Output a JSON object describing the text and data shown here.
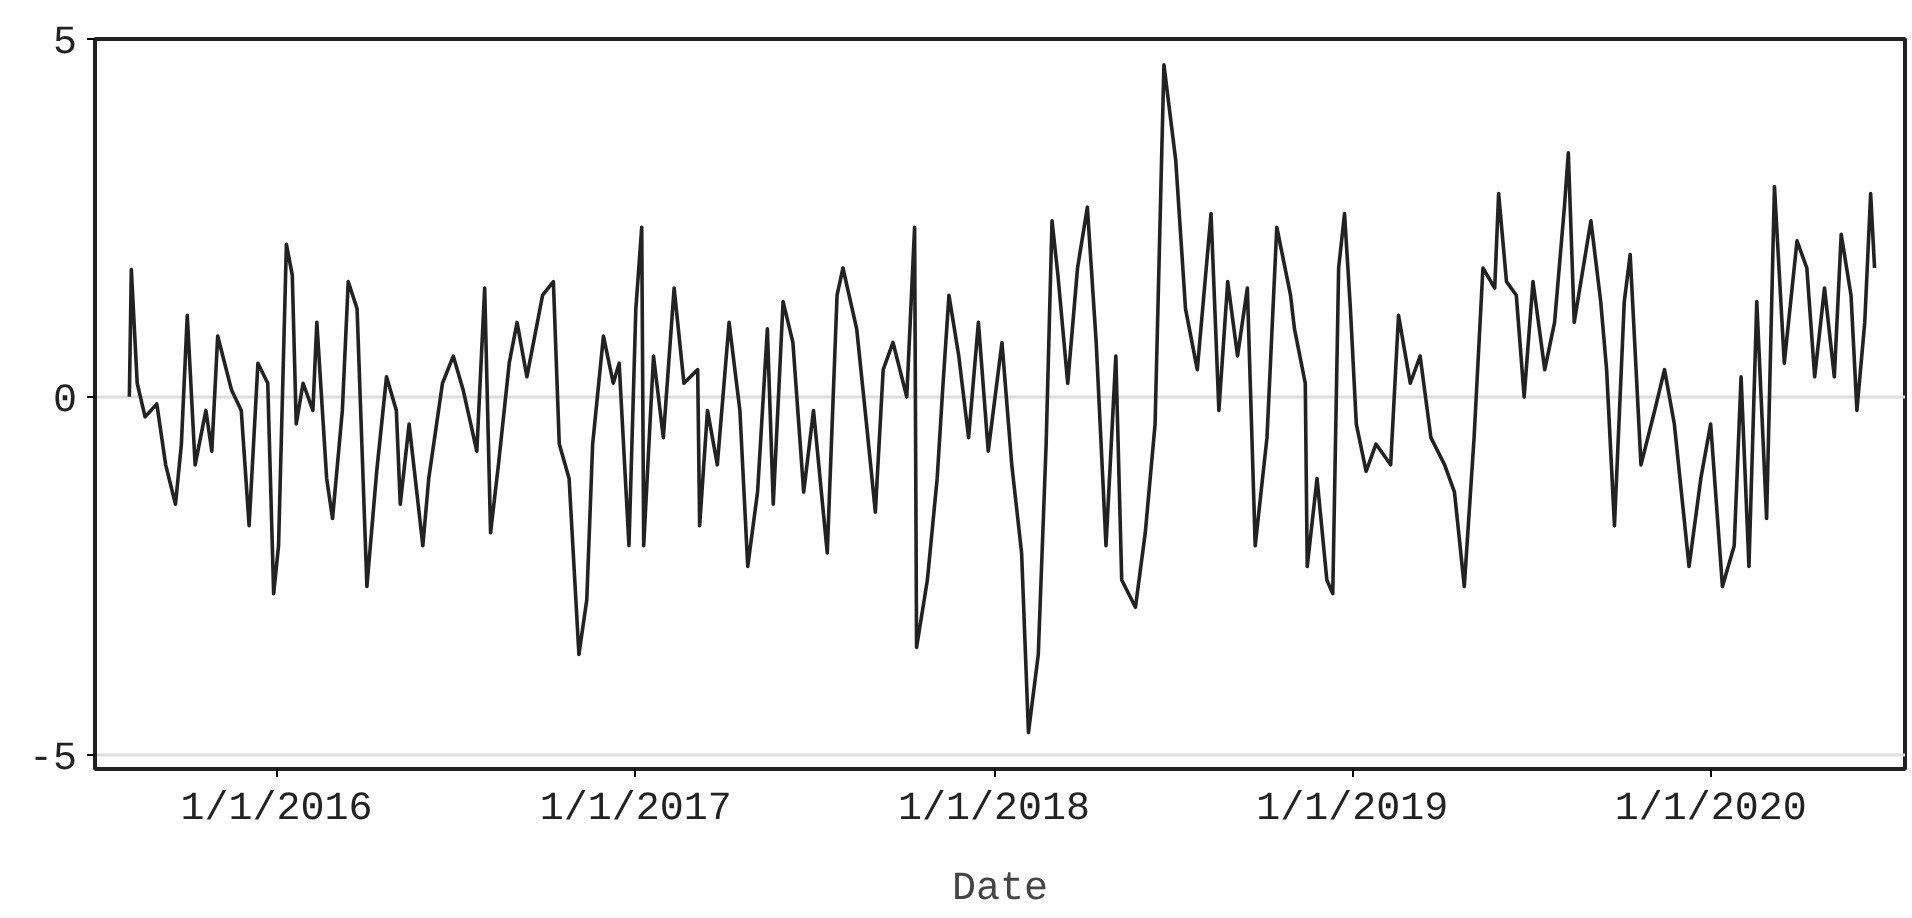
{
  "chart_data": {
    "type": "line",
    "xlabel": "Date",
    "xlim": [
      "2015-06-30",
      "2020-07-17"
    ],
    "ylim": [
      -5.2,
      5
    ],
    "xticks": [
      {
        "value": "2016-01-01",
        "label": "1/1/2016"
      },
      {
        "value": "2017-01-01",
        "label": "1/1/2017"
      },
      {
        "value": "2018-01-01",
        "label": "1/1/2018"
      },
      {
        "value": "2019-01-01",
        "label": "1/1/2019"
      },
      {
        "value": "2020-01-01",
        "label": "1/1/2020"
      }
    ],
    "yticks": [
      {
        "value": -5,
        "label": "-5"
      },
      0,
      5
    ],
    "grid": "y",
    "marker": "none",
    "line_style": "solid",
    "x": [
      "2015-08-04",
      "2015-08-06",
      "2015-08-12",
      "2015-08-20",
      "2015-09-01",
      "2015-09-10",
      "2015-09-20",
      "2015-09-26",
      "2015-10-02",
      "2015-10-10",
      "2015-10-21",
      "2015-10-27",
      "2015-11-02",
      "2015-11-16",
      "2015-11-26",
      "2015-12-04",
      "2015-12-13",
      "2015-12-23",
      "2015-12-29",
      "2016-01-03",
      "2016-01-11",
      "2016-01-17",
      "2016-01-21",
      "2016-01-28",
      "2016-02-07",
      "2016-02-11",
      "2016-02-21",
      "2016-02-27",
      "2016-03-08",
      "2016-03-14",
      "2016-03-23",
      "2016-04-02",
      "2016-04-12",
      "2016-04-22",
      "2016-05-02",
      "2016-05-06",
      "2016-05-15",
      "2016-05-29",
      "2016-06-04",
      "2016-06-18",
      "2016-06-29",
      "2016-07-09",
      "2016-07-23",
      "2016-07-31",
      "2016-08-06",
      "2016-08-14",
      "2016-08-25",
      "2016-09-02",
      "2016-09-12",
      "2016-09-28",
      "2016-10-09",
      "2016-10-15",
      "2016-10-25",
      "2016-11-04",
      "2016-11-12",
      "2016-11-18",
      "2016-11-29",
      "2016-12-09",
      "2016-12-15",
      "2016-12-25",
      "2017-01-01",
      "2017-01-07",
      "2017-01-09",
      "2017-01-19",
      "2017-01-29",
      "2017-02-09",
      "2017-02-19",
      "2017-03-05",
      "2017-03-07",
      "2017-03-15",
      "2017-03-25",
      "2017-04-06",
      "2017-04-17",
      "2017-04-25",
      "2017-05-05",
      "2017-05-15",
      "2017-05-21",
      "2017-05-31",
      "2017-06-10",
      "2017-06-21",
      "2017-07-01",
      "2017-07-15",
      "2017-07-25",
      "2017-07-31",
      "2017-08-14",
      "2017-08-24",
      "2017-09-02",
      "2017-09-10",
      "2017-09-20",
      "2017-10-04",
      "2017-10-12",
      "2017-10-14",
      "2017-10-25",
      "2017-11-04",
      "2017-11-10",
      "2017-11-16",
      "2017-11-26",
      "2017-12-06",
      "2017-12-16",
      "2017-12-26",
      "2018-01-09",
      "2018-01-19",
      "2018-01-29",
      "2018-02-05",
      "2018-02-15",
      "2018-02-23",
      "2018-03-01",
      "2018-03-07",
      "2018-03-17",
      "2018-03-27",
      "2018-04-06",
      "2018-04-15",
      "2018-04-25",
      "2018-05-05",
      "2018-05-11",
      "2018-05-25",
      "2018-06-04",
      "2018-06-14",
      "2018-06-23",
      "2018-07-05",
      "2018-07-15",
      "2018-07-27",
      "2018-08-10",
      "2018-08-18",
      "2018-08-27",
      "2018-09-06",
      "2018-09-16",
      "2018-09-24",
      "2018-10-06",
      "2018-10-16",
      "2018-10-30",
      "2018-11-03",
      "2018-11-14",
      "2018-11-16",
      "2018-11-26",
      "2018-12-06",
      "2018-12-12",
      "2018-12-18",
      "2018-12-24",
      "2018-12-30",
      "2019-01-05",
      "2019-01-15",
      "2019-01-25",
      "2019-02-09",
      "2019-02-17",
      "2019-03-01",
      "2019-03-11",
      "2019-03-22",
      "2019-04-05",
      "2019-04-15",
      "2019-04-25",
      "2019-05-05",
      "2019-05-14",
      "2019-05-26",
      "2019-05-30",
      "2019-06-07",
      "2019-06-17",
      "2019-06-25",
      "2019-07-04",
      "2019-07-16",
      "2019-07-26",
      "2019-08-05",
      "2019-08-09",
      "2019-08-15",
      "2019-09-01",
      "2019-09-11",
      "2019-09-17",
      "2019-09-25",
      "2019-10-05",
      "2019-10-11",
      "2019-10-22",
      "2019-11-05",
      "2019-11-15",
      "2019-11-25",
      "2019-12-10",
      "2019-12-22",
      "2020-01-01",
      "2020-01-13",
      "2020-01-25",
      "2020-02-01",
      "2020-02-09",
      "2020-02-17",
      "2020-02-27",
      "2020-03-06",
      "2020-03-16",
      "2020-03-29",
      "2020-04-08",
      "2020-04-16",
      "2020-04-26",
      "2020-05-06",
      "2020-05-13",
      "2020-05-23",
      "2020-05-29",
      "2020-06-06",
      "2020-06-12",
      "2020-06-16"
    ],
    "series": [
      {
        "color": "#222222",
        "values": [
          0,
          1.78,
          0.19,
          -0.28,
          -0.1,
          -0.95,
          -1.5,
          -0.66,
          1.14,
          -0.95,
          -0.19,
          -0.76,
          0.85,
          0.1,
          -0.19,
          -1.8,
          0.47,
          0.19,
          -2.75,
          -2.08,
          2.13,
          1.7,
          -0.38,
          0.19,
          -0.19,
          1.04,
          -1.14,
          -1.7,
          -0.19,
          1.61,
          1.23,
          -2.65,
          -1.04,
          0.28,
          -0.19,
          -1.5,
          -0.38,
          -2.08,
          -1.14,
          0.19,
          0.57,
          0.1,
          -0.76,
          1.52,
          -1.9,
          -0.95,
          0.47,
          1.04,
          0.28,
          1.42,
          1.61,
          -0.66,
          -1.14,
          -3.6,
          -2.84,
          -0.66,
          0.85,
          0.19,
          0.47,
          -2.08,
          1.23,
          2.37,
          -2.08,
          0.57,
          -0.57,
          1.52,
          0.19,
          0.38,
          -1.8,
          -0.19,
          -0.95,
          1.04,
          -0.19,
          -2.37,
          -1.33,
          0.95,
          -1.5,
          1.33,
          0.76,
          -1.33,
          -0.19,
          -2.18,
          1.42,
          1.8,
          0.95,
          -0.38,
          -1.61,
          0.38,
          0.76,
          0,
          2.37,
          -3.5,
          -2.56,
          -1.14,
          0.19,
          1.42,
          0.57,
          -0.57,
          1.04,
          -0.76,
          0.76,
          -0.95,
          -2.18,
          -4.69,
          -3.6,
          -0.66,
          2.46,
          1.7,
          0.19,
          1.8,
          2.65,
          0.76,
          -2.08,
          0.57,
          -2.56,
          -2.94,
          -1.9,
          -0.38,
          4.64,
          3.31,
          1.23,
          0.38,
          2.56,
          -0.19,
          1.61,
          0.57,
          1.52,
          -2.08,
          -0.57,
          2.37,
          1.42,
          0.95,
          0.19,
          -2.37,
          -1.14,
          -2.56,
          -2.75,
          1.8,
          2.56,
          1.23,
          -0.38,
          -1.04,
          -0.66,
          -0.95,
          1.14,
          0.19,
          0.57,
          -0.57,
          -0.95,
          -1.33,
          -2.65,
          -0.57,
          1.8,
          1.52,
          2.84,
          1.61,
          1.42,
          0,
          1.61,
          0.38,
          1.04,
          2.65,
          3.41,
          1.04,
          2.46,
          1.33,
          0.38,
          -1.8,
          1.33,
          1.99,
          -0.95,
          -0.19,
          0.38,
          -0.38,
          -2.37,
          -1.14,
          -0.38,
          -2.65,
          -2.08,
          0.28,
          -2.37,
          1.33,
          -1.7,
          2.94,
          0.47,
          2.18,
          1.8,
          0.28,
          1.52,
          0.28,
          2.27,
          1.42,
          -0.19,
          1.04,
          2.84,
          1.8
        ]
      }
    ]
  }
}
